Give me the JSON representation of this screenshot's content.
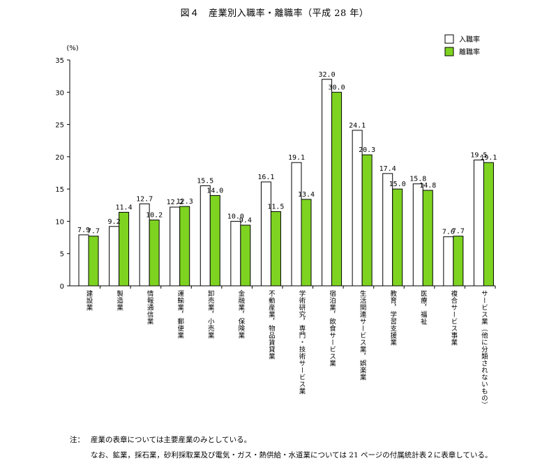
{
  "chart_data": {
    "type": "bar",
    "title": "図４　産業別入職率・離職率（平成 28 年）",
    "ylabel": "(%)",
    "ylim": [
      0,
      35
    ],
    "yticks": [
      0,
      5,
      10,
      15,
      20,
      25,
      30,
      35
    ],
    "categories": [
      "建設業",
      "製造業",
      "情報通信業",
      "運輸業，郵便業",
      "卸売業，小売業",
      "金融業，保険業",
      "不動産業，物品賃貸業",
      "学術研究，専門・技術サービス業",
      "宿泊業，飲食サービス業",
      "生活関連サービス業，娯楽業",
      "教育，学習支援業",
      "医療，福祉",
      "複合サービス事業",
      "サービス業（他に分類されないもの）"
    ],
    "series": [
      {
        "name": "入職率",
        "color": "#ffffff",
        "values": [
          7.9,
          9.2,
          12.7,
          12.2,
          15.5,
          10.0,
          16.1,
          19.1,
          32.0,
          24.1,
          17.4,
          15.8,
          7.6,
          19.5
        ]
      },
      {
        "name": "離職率",
        "color": "#7ed321",
        "values": [
          7.7,
          11.4,
          10.2,
          12.3,
          14.0,
          9.4,
          11.5,
          13.4,
          30.0,
          20.3,
          15.0,
          14.8,
          7.7,
          19.1
        ]
      }
    ],
    "legend": "top-right"
  },
  "note": {
    "label": "注：",
    "line1": "産業の表章については主要産業のみとしている。",
    "line2": "なお、鉱業，採石業，砂利採取業及び電気・ガス・熱供給・水道業については 21 ページの付属統計表２に表章している。"
  },
  "colors": {
    "green": "#7ed321",
    "stroke": "#000000"
  }
}
